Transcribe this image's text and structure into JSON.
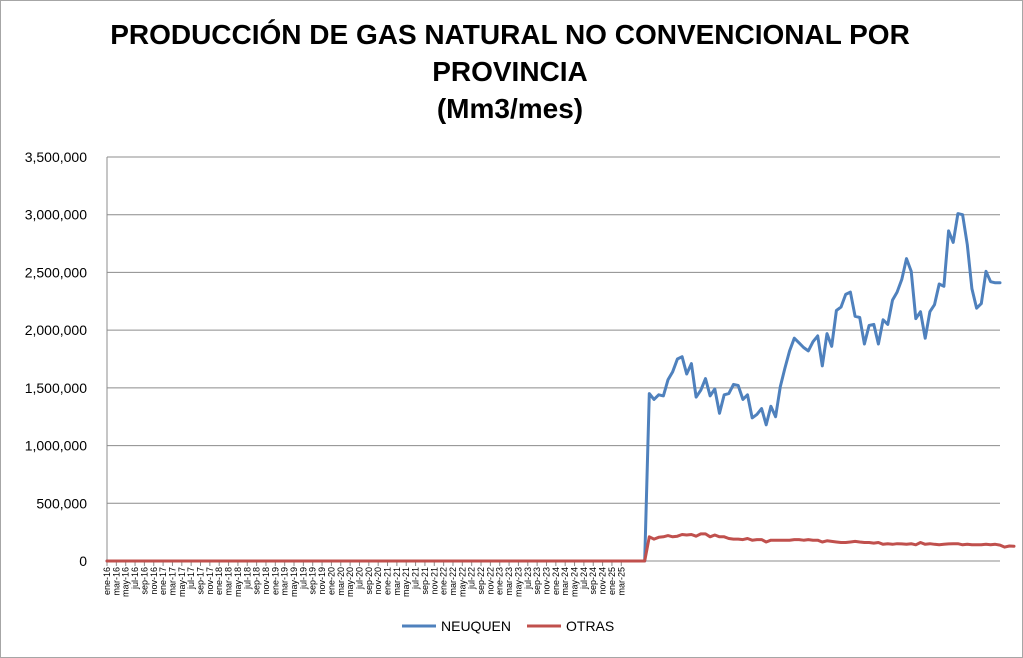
{
  "chart_data": {
    "type": "line",
    "title_lines": [
      "PRODUCCIÓN DE GAS NATURAL NO CONVENCIONAL POR",
      "PROVINCIA",
      "(Mm3/mes)"
    ],
    "ylim": [
      0,
      3500000
    ],
    "y_ticks": [
      "0",
      "500,000",
      "1,000,000",
      "1,500,000",
      "2,000,000",
      "2,500,000",
      "3,000,000",
      "3,500,000"
    ],
    "grid": "horizontal",
    "legend_position": "bottom",
    "x_labels": [
      "ene-16",
      "mar-16",
      "may-16",
      "jul-16",
      "sep-16",
      "nov-16",
      "ene-17",
      "mar-17",
      "may-17",
      "jul-17",
      "sep-17",
      "nov-17",
      "ene-18",
      "mar-18",
      "may-18",
      "jul-18",
      "sep-18",
      "nov-18",
      "ene-19",
      "mar-19",
      "may-19",
      "jul-19",
      "sep-19",
      "nov-19",
      "ene-20",
      "mar-20",
      "may-20",
      "jul-20",
      "sep-20",
      "nov-20",
      "ene-21",
      "mar-21",
      "may-21",
      "jul-21",
      "sep-21",
      "nov-21",
      "ene-22",
      "mar-22",
      "may-22",
      "jul-22",
      "sep-22",
      "nov-22",
      "ene-23",
      "mar-23",
      "may-23",
      "jul-23",
      "sep-23",
      "nov-23",
      "ene-24",
      "mar-24",
      "may-24",
      "jul-24",
      "sep-24",
      "nov-24",
      "ene-25",
      "mar-25"
    ],
    "series": [
      {
        "name": "NEUQUEN",
        "color": "#4f81bd",
        "values": [
          0,
          0,
          0,
          0,
          0,
          0,
          0,
          0,
          0,
          0,
          0,
          0,
          0,
          0,
          0,
          0,
          0,
          0,
          0,
          0,
          0,
          0,
          0,
          0,
          0,
          0,
          0,
          0,
          0,
          0,
          0,
          0,
          0,
          0,
          0,
          0,
          0,
          0,
          0,
          0,
          0,
          0,
          0,
          0,
          0,
          0,
          0,
          0,
          0,
          0,
          0,
          0,
          0,
          0,
          0,
          0,
          0,
          0,
          0,
          0,
          0,
          0,
          0,
          0,
          0,
          0,
          0,
          0,
          0,
          0,
          0,
          0,
          0,
          0,
          0,
          0,
          0,
          0,
          0,
          0,
          0,
          0,
          0,
          0,
          0,
          0,
          0,
          0,
          0,
          0,
          0,
          0,
          0,
          0,
          0,
          0,
          0,
          0,
          0,
          0,
          0,
          0,
          0,
          0,
          0,
          0,
          0,
          0,
          0,
          0,
          0,
          0,
          0,
          0,
          0,
          0,
          1450000,
          1400000,
          1440000,
          1430000,
          1570000,
          1640000,
          1750000,
          1770000,
          1620000,
          1710000,
          1420000,
          1480000,
          1580000,
          1430000,
          1490000,
          1280000,
          1440000,
          1450000,
          1530000,
          1520000,
          1400000,
          1440000,
          1240000,
          1270000,
          1320000,
          1180000,
          1340000,
          1250000,
          1510000,
          1670000,
          1820000,
          1930000,
          1890000,
          1850000,
          1820000,
          1900000,
          1950000,
          1690000,
          1970000,
          1860000,
          2170000,
          2200000,
          2310000,
          2330000,
          2120000,
          2110000,
          1880000,
          2040000,
          2050000,
          1880000,
          2090000,
          2050000,
          2260000,
          2330000,
          2440000,
          2620000,
          2510000,
          2100000,
          2160000,
          1930000,
          2160000,
          2220000,
          2400000,
          2380000,
          2860000,
          2760000,
          3010000,
          3000000,
          2740000,
          2360000,
          2190000,
          2230000,
          2510000,
          2420000,
          2410000,
          2410000
        ]
      },
      {
        "name": "OTRAS",
        "color": "#c0504d",
        "values": [
          0,
          0,
          0,
          0,
          0,
          0,
          0,
          0,
          0,
          0,
          0,
          0,
          0,
          0,
          0,
          0,
          0,
          0,
          0,
          0,
          0,
          0,
          0,
          0,
          0,
          0,
          0,
          0,
          0,
          0,
          0,
          0,
          0,
          0,
          0,
          0,
          0,
          0,
          0,
          0,
          0,
          0,
          0,
          0,
          0,
          0,
          0,
          0,
          0,
          0,
          0,
          0,
          0,
          0,
          0,
          0,
          0,
          0,
          0,
          0,
          0,
          0,
          0,
          0,
          0,
          0,
          0,
          0,
          0,
          0,
          0,
          0,
          0,
          0,
          0,
          0,
          0,
          0,
          0,
          0,
          0,
          0,
          0,
          0,
          0,
          0,
          0,
          0,
          0,
          0,
          0,
          0,
          0,
          0,
          0,
          0,
          0,
          0,
          0,
          0,
          0,
          0,
          0,
          0,
          0,
          0,
          0,
          0,
          0,
          0,
          0,
          0,
          0,
          0,
          0,
          0,
          210000,
          190000,
          205000,
          210000,
          220000,
          210000,
          215000,
          230000,
          225000,
          230000,
          215000,
          235000,
          235000,
          210000,
          225000,
          210000,
          210000,
          195000,
          190000,
          190000,
          185000,
          195000,
          180000,
          185000,
          185000,
          165000,
          180000,
          180000,
          180000,
          180000,
          180000,
          185000,
          185000,
          180000,
          185000,
          180000,
          180000,
          165000,
          175000,
          170000,
          165000,
          160000,
          160000,
          165000,
          170000,
          165000,
          160000,
          160000,
          155000,
          160000,
          145000,
          150000,
          145000,
          150000,
          148000,
          145000,
          150000,
          140000,
          160000,
          145000,
          150000,
          145000,
          140000,
          145000,
          148000,
          150000,
          150000,
          140000,
          145000,
          140000,
          140000,
          140000,
          145000,
          140000,
          145000,
          138000,
          120000,
          130000,
          128000
        ]
      }
    ]
  }
}
